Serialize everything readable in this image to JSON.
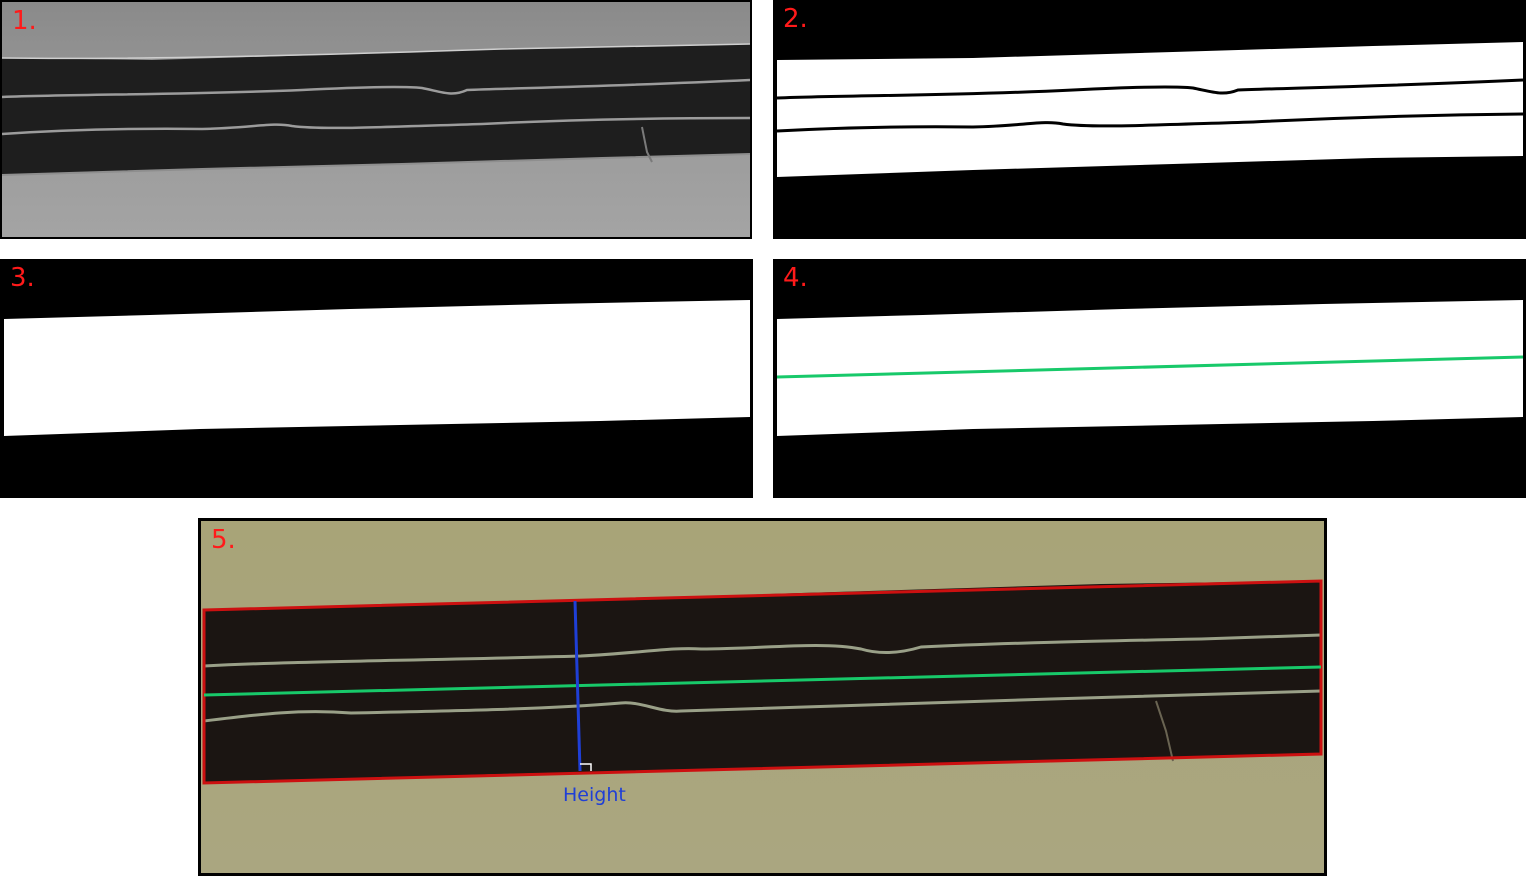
{
  "panels": [
    {
      "label": "1."
    },
    {
      "label": "2."
    },
    {
      "label": "3."
    },
    {
      "label": "4."
    },
    {
      "label": "5."
    }
  ],
  "annotation": {
    "height_label": "Height"
  },
  "colors": {
    "panel_label": "#ff1a1a",
    "centerline": "#18c96a",
    "bounding_box": "#cc1010",
    "height_line": "#1f3fd6"
  }
}
